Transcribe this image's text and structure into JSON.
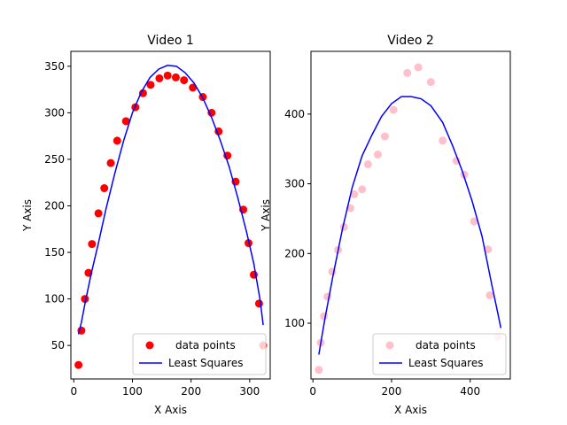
{
  "chart_data": [
    {
      "type": "scatter",
      "title": "Video 1",
      "xlabel": "X Axis",
      "ylabel": "Y Axis",
      "xlim": [
        -5,
        335
      ],
      "ylim": [
        14,
        366
      ],
      "xticks": [
        0,
        100,
        200,
        300
      ],
      "yticks": [
        50,
        100,
        150,
        200,
        250,
        300,
        350
      ],
      "grid": false,
      "legend_position": "lower-right",
      "series": [
        {
          "name": "data points",
          "kind": "scatter",
          "color": "#ff0000",
          "points": [
            [
              8,
              29
            ],
            [
              13,
              66
            ],
            [
              19,
              100
            ],
            [
              25,
              128
            ],
            [
              31,
              159
            ],
            [
              42,
              192
            ],
            [
              52,
              219
            ],
            [
              63,
              246
            ],
            [
              74,
              270
            ],
            [
              89,
              291
            ],
            [
              105,
              306
            ],
            [
              118,
              321
            ],
            [
              131,
              330
            ],
            [
              146,
              337
            ],
            [
              160,
              340
            ],
            [
              174,
              338
            ],
            [
              188,
              335
            ],
            [
              203,
              327
            ],
            [
              220,
              317
            ],
            [
              235,
              300
            ],
            [
              247,
              280
            ],
            [
              262,
              254
            ],
            [
              276,
              226
            ],
            [
              289,
              196
            ],
            [
              298,
              160
            ],
            [
              307,
              126
            ],
            [
              316,
              95
            ],
            [
              323,
              50
            ]
          ]
        },
        {
          "name": "Least Squares",
          "kind": "line",
          "color": "#0000ff",
          "points": [
            [
              8,
              62
            ],
            [
              13,
              75
            ],
            [
              20,
              98
            ],
            [
              30,
              128
            ],
            [
              42,
              160
            ],
            [
              55,
              197
            ],
            [
              70,
              235
            ],
            [
              85,
              270
            ],
            [
              100,
              300
            ],
            [
              115,
              322
            ],
            [
              130,
              338
            ],
            [
              145,
              347
            ],
            [
              160,
              351
            ],
            [
              175,
              350
            ],
            [
              190,
              343
            ],
            [
              205,
              332
            ],
            [
              220,
              316
            ],
            [
              235,
              295
            ],
            [
              250,
              270
            ],
            [
              265,
              242
            ],
            [
              280,
              208
            ],
            [
              295,
              171
            ],
            [
              307,
              138
            ],
            [
              318,
              98
            ],
            [
              323,
              72
            ]
          ]
        }
      ]
    },
    {
      "type": "scatter",
      "title": "Video 2",
      "xlabel": "X Axis",
      "ylabel": "Y Axis",
      "xlim": [
        -5,
        502
      ],
      "ylim": [
        20,
        490
      ],
      "xticks": [
        0,
        200,
        400
      ],
      "yticks": [
        100,
        200,
        300,
        400
      ],
      "grid": false,
      "legend_position": "lower-right",
      "series": [
        {
          "name": "data points",
          "kind": "scatter",
          "color": "#ffc0cb",
          "points": [
            [
              15,
              33
            ],
            [
              20,
              72
            ],
            [
              28,
              110
            ],
            [
              37,
              138
            ],
            [
              49,
              174
            ],
            [
              64,
              205
            ],
            [
              79,
              238
            ],
            [
              95,
              265
            ],
            [
              105,
              285
            ],
            [
              125,
              292
            ],
            [
              140,
              328
            ],
            [
              165,
              342
            ],
            [
              183,
              368
            ],
            [
              205,
              406
            ],
            [
              240,
              459
            ],
            [
              268,
              467
            ],
            [
              300,
              446
            ],
            [
              330,
              362
            ],
            [
              365,
              333
            ],
            [
              385,
              313
            ],
            [
              410,
              246
            ],
            [
              445,
              206
            ],
            [
              450,
              140
            ],
            [
              470,
              80
            ]
          ]
        },
        {
          "name": "Least Squares",
          "kind": "line",
          "color": "#0000ff",
          "points": [
            [
              15,
              55
            ],
            [
              30,
              105
            ],
            [
              50,
              165
            ],
            [
              75,
              235
            ],
            [
              100,
              295
            ],
            [
              125,
              340
            ],
            [
              150,
              370
            ],
            [
              175,
              397
            ],
            [
              200,
              415
            ],
            [
              225,
              425
            ],
            [
              250,
              425
            ],
            [
              275,
              422
            ],
            [
              300,
              412
            ],
            [
              330,
              388
            ],
            [
              355,
              355
            ],
            [
              380,
              318
            ],
            [
              405,
              275
            ],
            [
              430,
              225
            ],
            [
              455,
              155
            ],
            [
              470,
              115
            ],
            [
              478,
              93
            ]
          ]
        }
      ]
    }
  ]
}
